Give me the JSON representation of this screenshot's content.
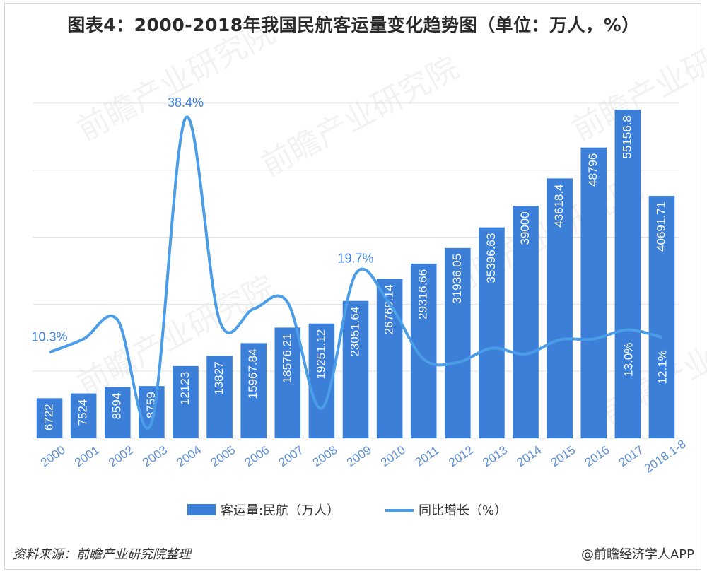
{
  "page": {
    "title": "图表4：2000-2018年我国民航客运量变化趋势图（单位：万人，%）",
    "source": "资料来源：前瞻产业研究院整理",
    "brand": "@前瞻经济学人APP",
    "watermark": "前瞻产业研究院"
  },
  "chart_data": {
    "type": "bar",
    "title": "图表4：2000-2018年我国民航客运量变化趋势图（单位：万人，%）",
    "categories": [
      "2000",
      "2001",
      "2002",
      "2003",
      "2004",
      "2005",
      "2006",
      "2007",
      "2008",
      "2009",
      "2010",
      "2011",
      "2012",
      "2013",
      "2014",
      "2015",
      "2016",
      "2017",
      "2018.1-8"
    ],
    "series": [
      {
        "name": "客运量:民航（万人）",
        "type": "bar",
        "color": "#3b7fd9",
        "values": [
          6722,
          7524,
          8594,
          8759,
          12123,
          13827,
          15967.84,
          18576.21,
          19251.12,
          23051.64,
          26769.14,
          29316.66,
          31936.05,
          35396.63,
          39000,
          43618.4,
          48796,
          55156.8,
          40691.71
        ],
        "labels": [
          "6722",
          "7524",
          "8594",
          "8759",
          "12123",
          "13827",
          "15967.84",
          "18576.21",
          "19251.12",
          "23051.64",
          "26769.14",
          "29316.66",
          "31936.05",
          "35396.63",
          "39000",
          "43618.4",
          "48796",
          "55156.8",
          "40691.71"
        ]
      },
      {
        "name": "同比增长（%）",
        "type": "line",
        "color": "#4a9de6",
        "values": [
          10.3,
          11.9,
          14.2,
          1.9,
          38.4,
          14.1,
          15.5,
          16.3,
          3.6,
          19.7,
          16.1,
          9.5,
          9.1,
          10.8,
          10.1,
          11.8,
          11.9,
          13.0,
          12.1
        ],
        "labeled_points": [
          {
            "index": 0,
            "text": "10.3%"
          },
          {
            "index": 4,
            "text": "38.4%"
          },
          {
            "index": 9,
            "text": "19.7%"
          },
          {
            "index": 17,
            "text": "13.0%"
          },
          {
            "index": 18,
            "text": "12.1%"
          }
        ]
      }
    ],
    "ylim": [
      0,
      56000
    ],
    "ylim_secondary": [
      0,
      40
    ],
    "grid": true,
    "legend": "bottom-center"
  }
}
